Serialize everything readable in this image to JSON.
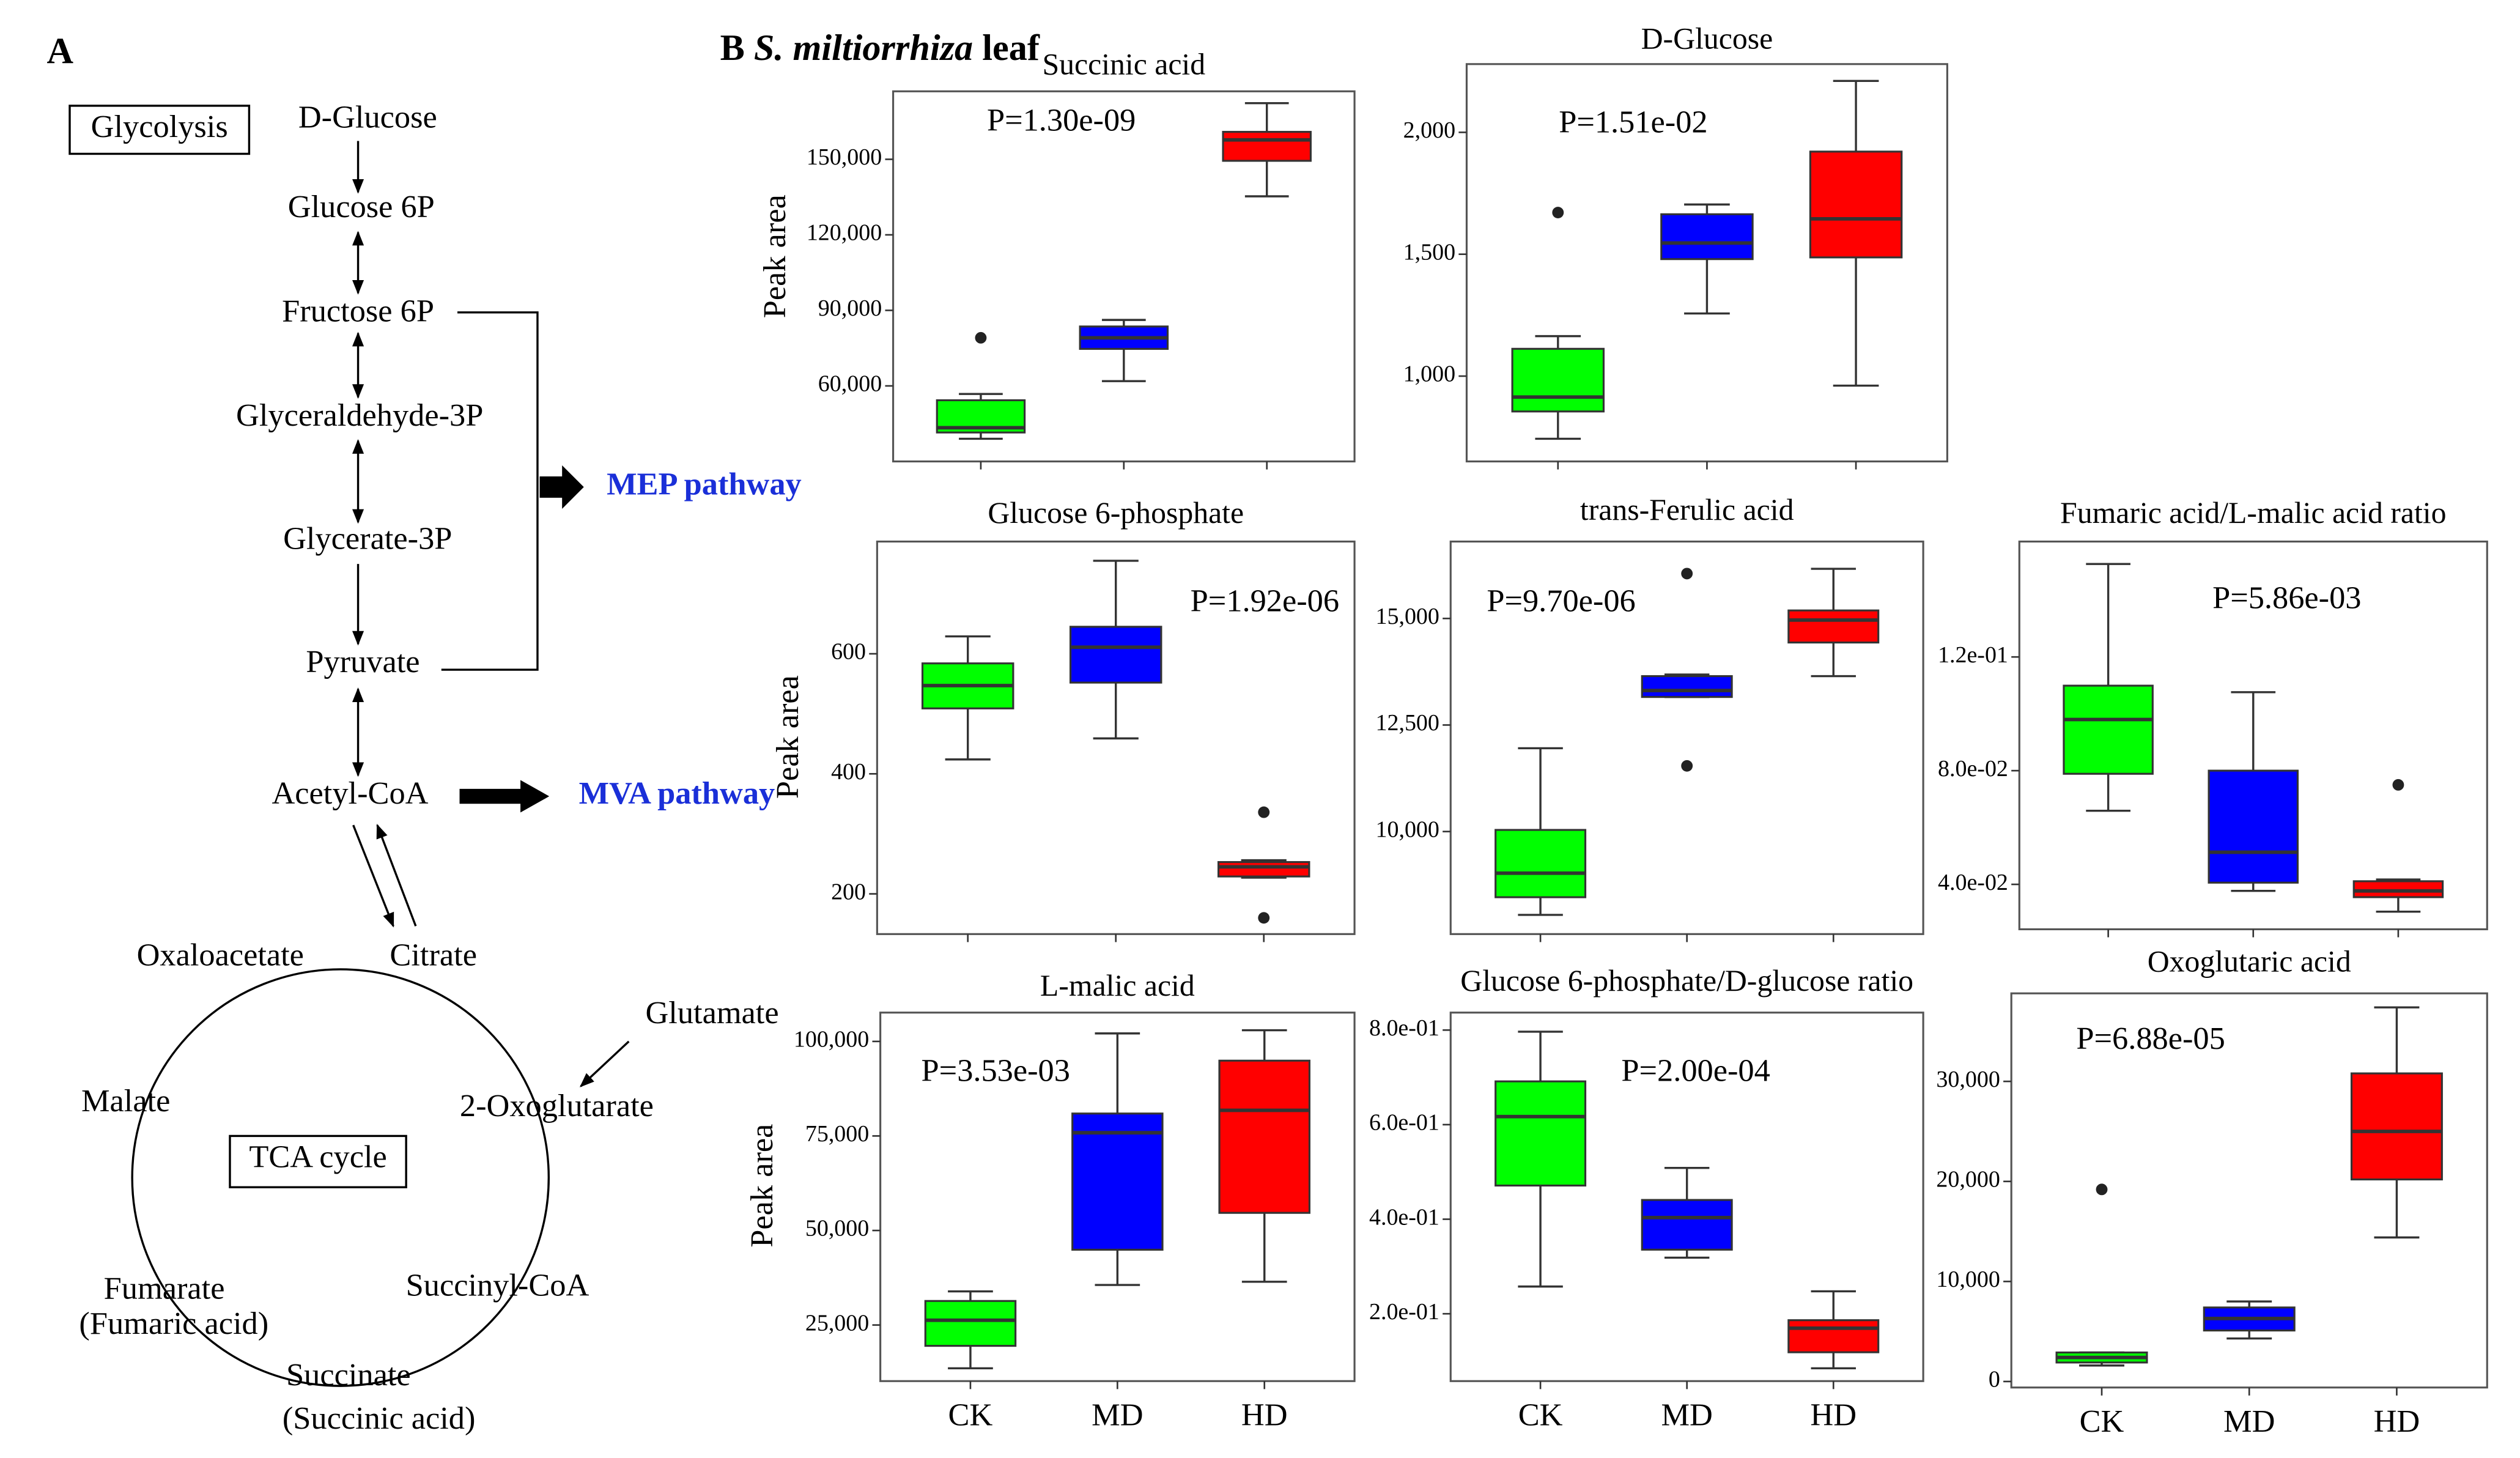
{
  "panel_a": {
    "label": "A",
    "glycolysis": "Glycolysis",
    "tca": "TCA cycle",
    "mep": "MEP pathway",
    "mva": "MVA pathway",
    "nodes": [
      "D-Glucose",
      "Glucose 6P",
      "Fructose 6P",
      "Glyceraldehyde-3P",
      "Glycerate-3P",
      "Pyruvate",
      "Acetyl-CoA",
      "Citrate",
      "Oxaloacetate",
      "Glutamate",
      "2-Oxoglutarate",
      "Malate",
      "Succinyl-CoA",
      "Fumarate",
      "(Fumaric acid)",
      "Succinate",
      "(Succinic acid)"
    ]
  },
  "panel_b": {
    "label": "B",
    "species": "S. miltiorrhiza",
    "tissue": "leaf"
  },
  "chart_data": [
    {
      "type": "box",
      "title": "Succinic acid",
      "ylabel": "Peak area",
      "annotation": "P=1.30e-09",
      "ylim": [
        30000,
        177000
      ],
      "yticks": [
        {
          "value": 60000,
          "label": "60,000"
        },
        {
          "value": 90000,
          "label": "90,000"
        },
        {
          "value": 120000,
          "label": "120,000"
        },
        {
          "value": 150000,
          "label": "150,000"
        }
      ],
      "boxes": [
        {
          "color": "#00ff00",
          "min": 39000,
          "q1": 41500,
          "median": 43400,
          "q3": 54300,
          "max": 56800,
          "outliers": [
            79100
          ]
        },
        {
          "color": "#0000ff",
          "min": 61900,
          "q1": 74700,
          "median": 79100,
          "q3": 83600,
          "max": 86200
        },
        {
          "color": "#ff0000",
          "min": 135300,
          "q1": 149400,
          "median": 157700,
          "q3": 160900,
          "max": 172300
        }
      ]
    },
    {
      "type": "box",
      "title": "D-Glucose",
      "annotation": "P=1.51e-02",
      "ylim": [
        650,
        2280
      ],
      "yticks": [
        {
          "value": 1000,
          "label": "1,000"
        },
        {
          "value": 1500,
          "label": "1,500"
        },
        {
          "value": 2000,
          "label": "2,000"
        }
      ],
      "boxes": [
        {
          "color": "#00ff00",
          "min": 743,
          "q1": 855,
          "median": 914,
          "q3": 1112,
          "max": 1164,
          "outliers": [
            1671
          ]
        },
        {
          "color": "#0000ff",
          "min": 1257,
          "q1": 1480,
          "median": 1546,
          "q3": 1664,
          "max": 1704
        },
        {
          "color": "#ff0000",
          "min": 961,
          "q1": 1487,
          "median": 1645,
          "q3": 1921,
          "max": 2211
        }
      ]
    },
    {
      "type": "box",
      "title": "Glucose 6-phosphate",
      "ylabel": "Peak area",
      "annotation": "P=1.92e-06",
      "ylim": [
        133,
        787
      ],
      "yticks": [
        200,
        400,
        600
      ],
      "boxes": [
        {
          "color": "#00ff00",
          "min": 424,
          "q1": 509,
          "median": 547,
          "q3": 584,
          "max": 629
        },
        {
          "color": "#0000ff",
          "min": 459,
          "q1": 552,
          "median": 611,
          "q3": 645,
          "max": 755
        },
        {
          "color": "#ff0000",
          "min": 227,
          "q1": 229,
          "median": 245,
          "q3": 253,
          "max": 256,
          "outliers": [
            336,
            160
          ]
        }
      ]
    },
    {
      "type": "box",
      "title": "trans-Ferulic acid",
      "annotation": "P=9.70e-06",
      "ylim": [
        7594,
        16805
      ],
      "yticks": [
        {
          "value": 10000,
          "label": "10,000"
        },
        {
          "value": 12500,
          "label": "12,500"
        },
        {
          "value": 15000,
          "label": "15,000"
        }
      ],
      "boxes": [
        {
          "color": "#00ff00",
          "min": 8045,
          "q1": 8459,
          "median": 9023,
          "q3": 10038,
          "max": 11955
        },
        {
          "color": "#0000ff",
          "min": 13158,
          "q1": 13158,
          "median": 13308,
          "q3": 13647,
          "max": 13684,
          "outliers": [
            11541,
            16053
          ]
        },
        {
          "color": "#ff0000",
          "min": 13647,
          "q1": 14436,
          "median": 14962,
          "q3": 15188,
          "max": 16165
        }
      ]
    },
    {
      "type": "box",
      "title": "Fumaric acid/L-malic acid ratio",
      "annotation": "P=5.86e-03",
      "ylim": [
        0.0242,
        0.1606
      ],
      "yticks": [
        {
          "value": 0.04,
          "label": "4.0e-02"
        },
        {
          "value": 0.08,
          "label": "8.0e-02"
        },
        {
          "value": 0.12,
          "label": "1.2e-01"
        }
      ],
      "boxes": [
        {
          "color": "#00ff00",
          "min": 0.0659,
          "q1": 0.0789,
          "median": 0.098,
          "q3": 0.1099,
          "max": 0.1527
        },
        {
          "color": "#0000ff",
          "min": 0.0377,
          "q1": 0.0406,
          "median": 0.0513,
          "q3": 0.08,
          "max": 0.1076
        },
        {
          "color": "#ff0000",
          "min": 0.0304,
          "q1": 0.0355,
          "median": 0.0377,
          "q3": 0.0411,
          "max": 0.0417,
          "outliers": [
            0.075
          ]
        }
      ]
    },
    {
      "type": "box",
      "title": "L-malic acid",
      "ylabel": "Peak area",
      "annotation": "P=3.53e-03",
      "categories": [
        "CK",
        "MD",
        "HD"
      ],
      "ylim": [
        10169,
        107627
      ],
      "yticks": [
        {
          "value": 25000,
          "label": "25,000"
        },
        {
          "value": 50000,
          "label": "50,000"
        },
        {
          "value": 75000,
          "label": "75,000"
        },
        {
          "value": 100000,
          "label": "100,000"
        }
      ],
      "boxes": [
        {
          "color": "#00ff00",
          "min": 13559,
          "q1": 19491,
          "median": 26271,
          "q3": 31356,
          "max": 33898
        },
        {
          "color": "#0000ff",
          "min": 35593,
          "q1": 44915,
          "median": 75847,
          "q3": 80932,
          "max": 102119
        },
        {
          "color": "#ff0000",
          "min": 36441,
          "q1": 54661,
          "median": 81780,
          "q3": 94915,
          "max": 102966
        }
      ]
    },
    {
      "type": "box",
      "title": "Glucose 6-phosphate/D-glucose ratio",
      "annotation": "P=2.00e-04",
      "categories": [
        "CK",
        "MD",
        "HD"
      ],
      "ylim": [
        0.0576,
        0.837
      ],
      "yticks": [
        {
          "value": 0.2,
          "label": "2.0e-01"
        },
        {
          "value": 0.4,
          "label": "4.0e-01"
        },
        {
          "value": 0.6,
          "label": "6.0e-01"
        },
        {
          "value": 0.8,
          "label": "8.0e-01"
        }
      ],
      "boxes": [
        {
          "color": "#00ff00",
          "min": 0.2576,
          "q1": 0.4712,
          "median": 0.617,
          "q3": 0.6915,
          "max": 0.7966
        },
        {
          "color": "#0000ff",
          "min": 0.3186,
          "q1": 0.3356,
          "median": 0.4034,
          "q3": 0.4407,
          "max": 0.5085
        },
        {
          "color": "#ff0000",
          "min": 0.0847,
          "q1": 0.1186,
          "median": 0.1695,
          "q3": 0.1864,
          "max": 0.2475
        }
      ]
    },
    {
      "type": "box",
      "title": "Oxoglutaric acid",
      "annotation": "P=6.88e-05",
      "categories": [
        "CK",
        "MD",
        "HD"
      ],
      "ylim": [
        -600,
        38800
      ],
      "yticks": [
        0,
        {
          "value": 10000,
          "label": "10,000"
        },
        {
          "value": 20000,
          "label": "20,000"
        },
        {
          "value": 30000,
          "label": "30,000"
        }
      ],
      "boxes": [
        {
          "color": "#00ff00",
          "min": 1600,
          "q1": 1900,
          "median": 2400,
          "q3": 2900,
          "max": 2900,
          "outliers": [
            19200
          ]
        },
        {
          "color": "#0000ff",
          "min": 4300,
          "q1": 5100,
          "median": 6300,
          "q3": 7400,
          "max": 8000
        },
        {
          "color": "#ff0000",
          "min": 14400,
          "q1": 20200,
          "median": 25000,
          "q3": 30800,
          "max": 37400
        }
      ]
    }
  ]
}
